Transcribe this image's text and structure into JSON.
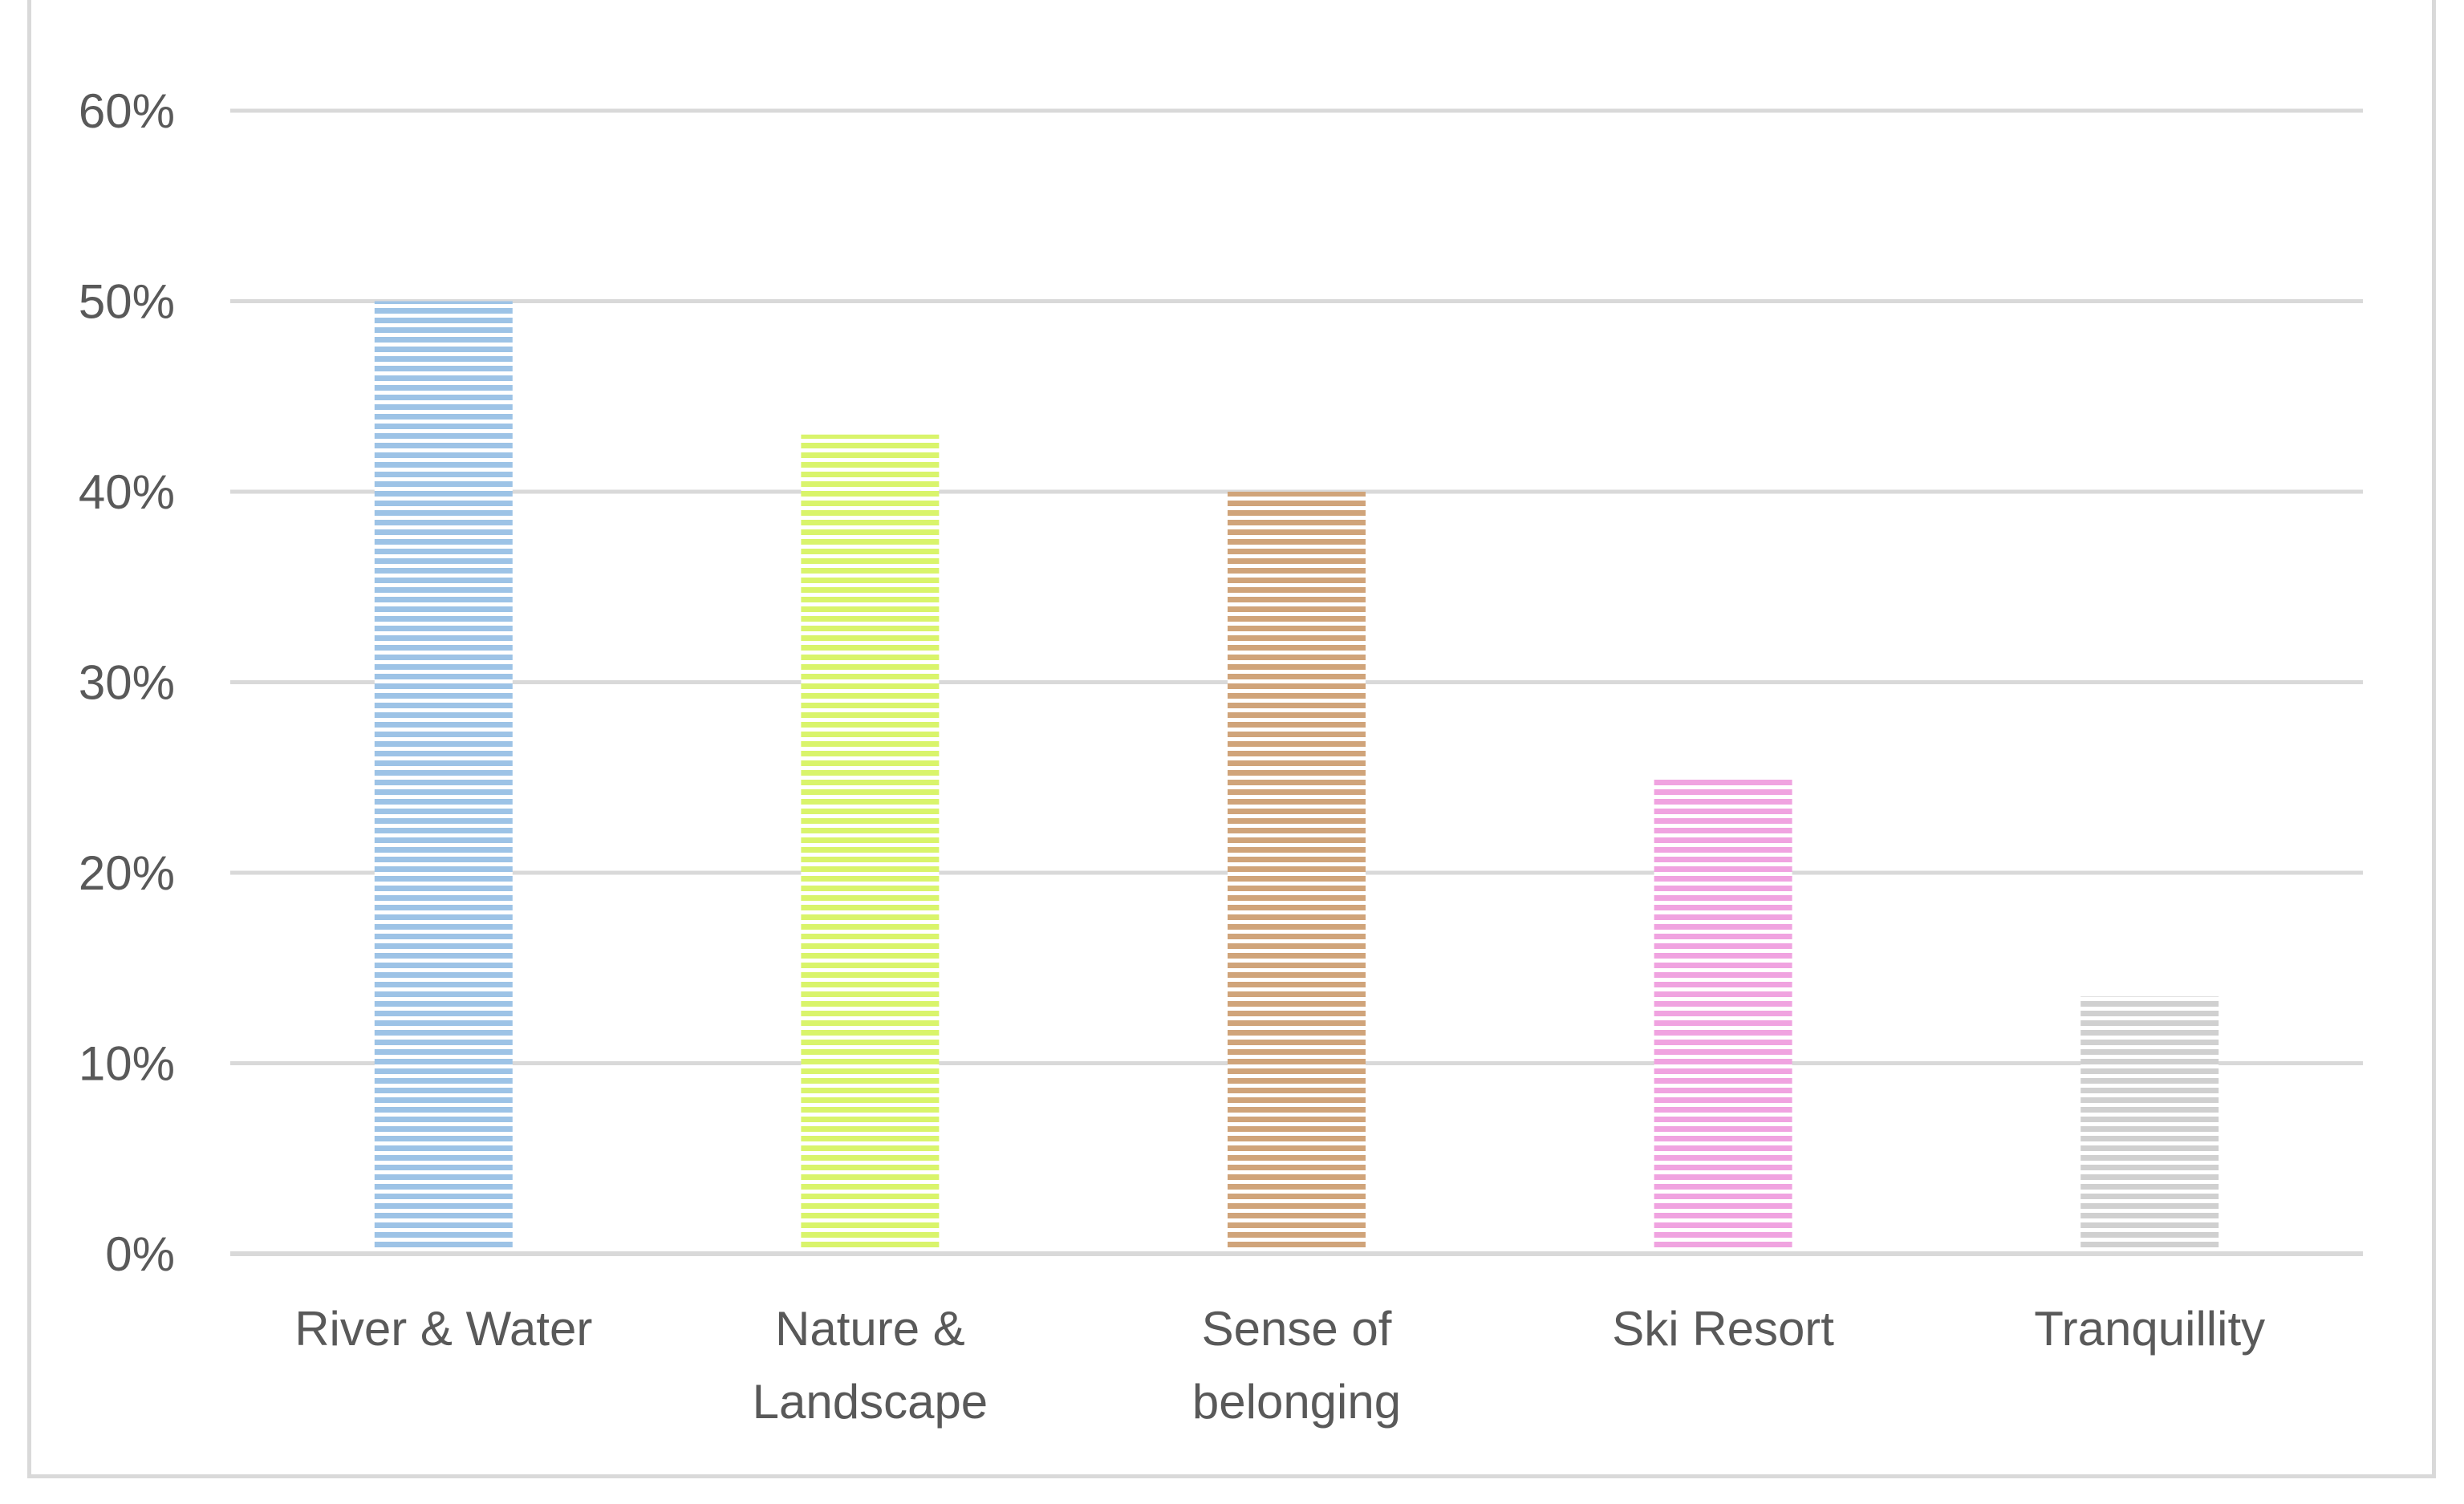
{
  "chart_data": {
    "type": "bar",
    "title": "",
    "xlabel": "",
    "ylabel": "",
    "ylim": [
      0,
      0.6
    ],
    "yticks": [
      0,
      0.1,
      0.2,
      0.3,
      0.4,
      0.5,
      0.6
    ],
    "ytick_labels": [
      "0%",
      "10%",
      "20%",
      "30%",
      "40%",
      "50%",
      "60%"
    ],
    "grid": true,
    "legend": "none",
    "categories": [
      [
        "River & Water"
      ],
      [
        "Nature &",
        "Landscape"
      ],
      [
        "Sense of",
        "belonging"
      ],
      [
        "Ski Resort"
      ],
      [
        "Tranquillity"
      ]
    ],
    "values": [
      0.5,
      0.43,
      0.4,
      0.25,
      0.135
    ],
    "colors": [
      "#9dc3e6",
      "#d9f46b",
      "#d0a47a",
      "#f0a3e0",
      "#d0d0d0"
    ],
    "fill_pattern": "horizontal-stripes"
  }
}
